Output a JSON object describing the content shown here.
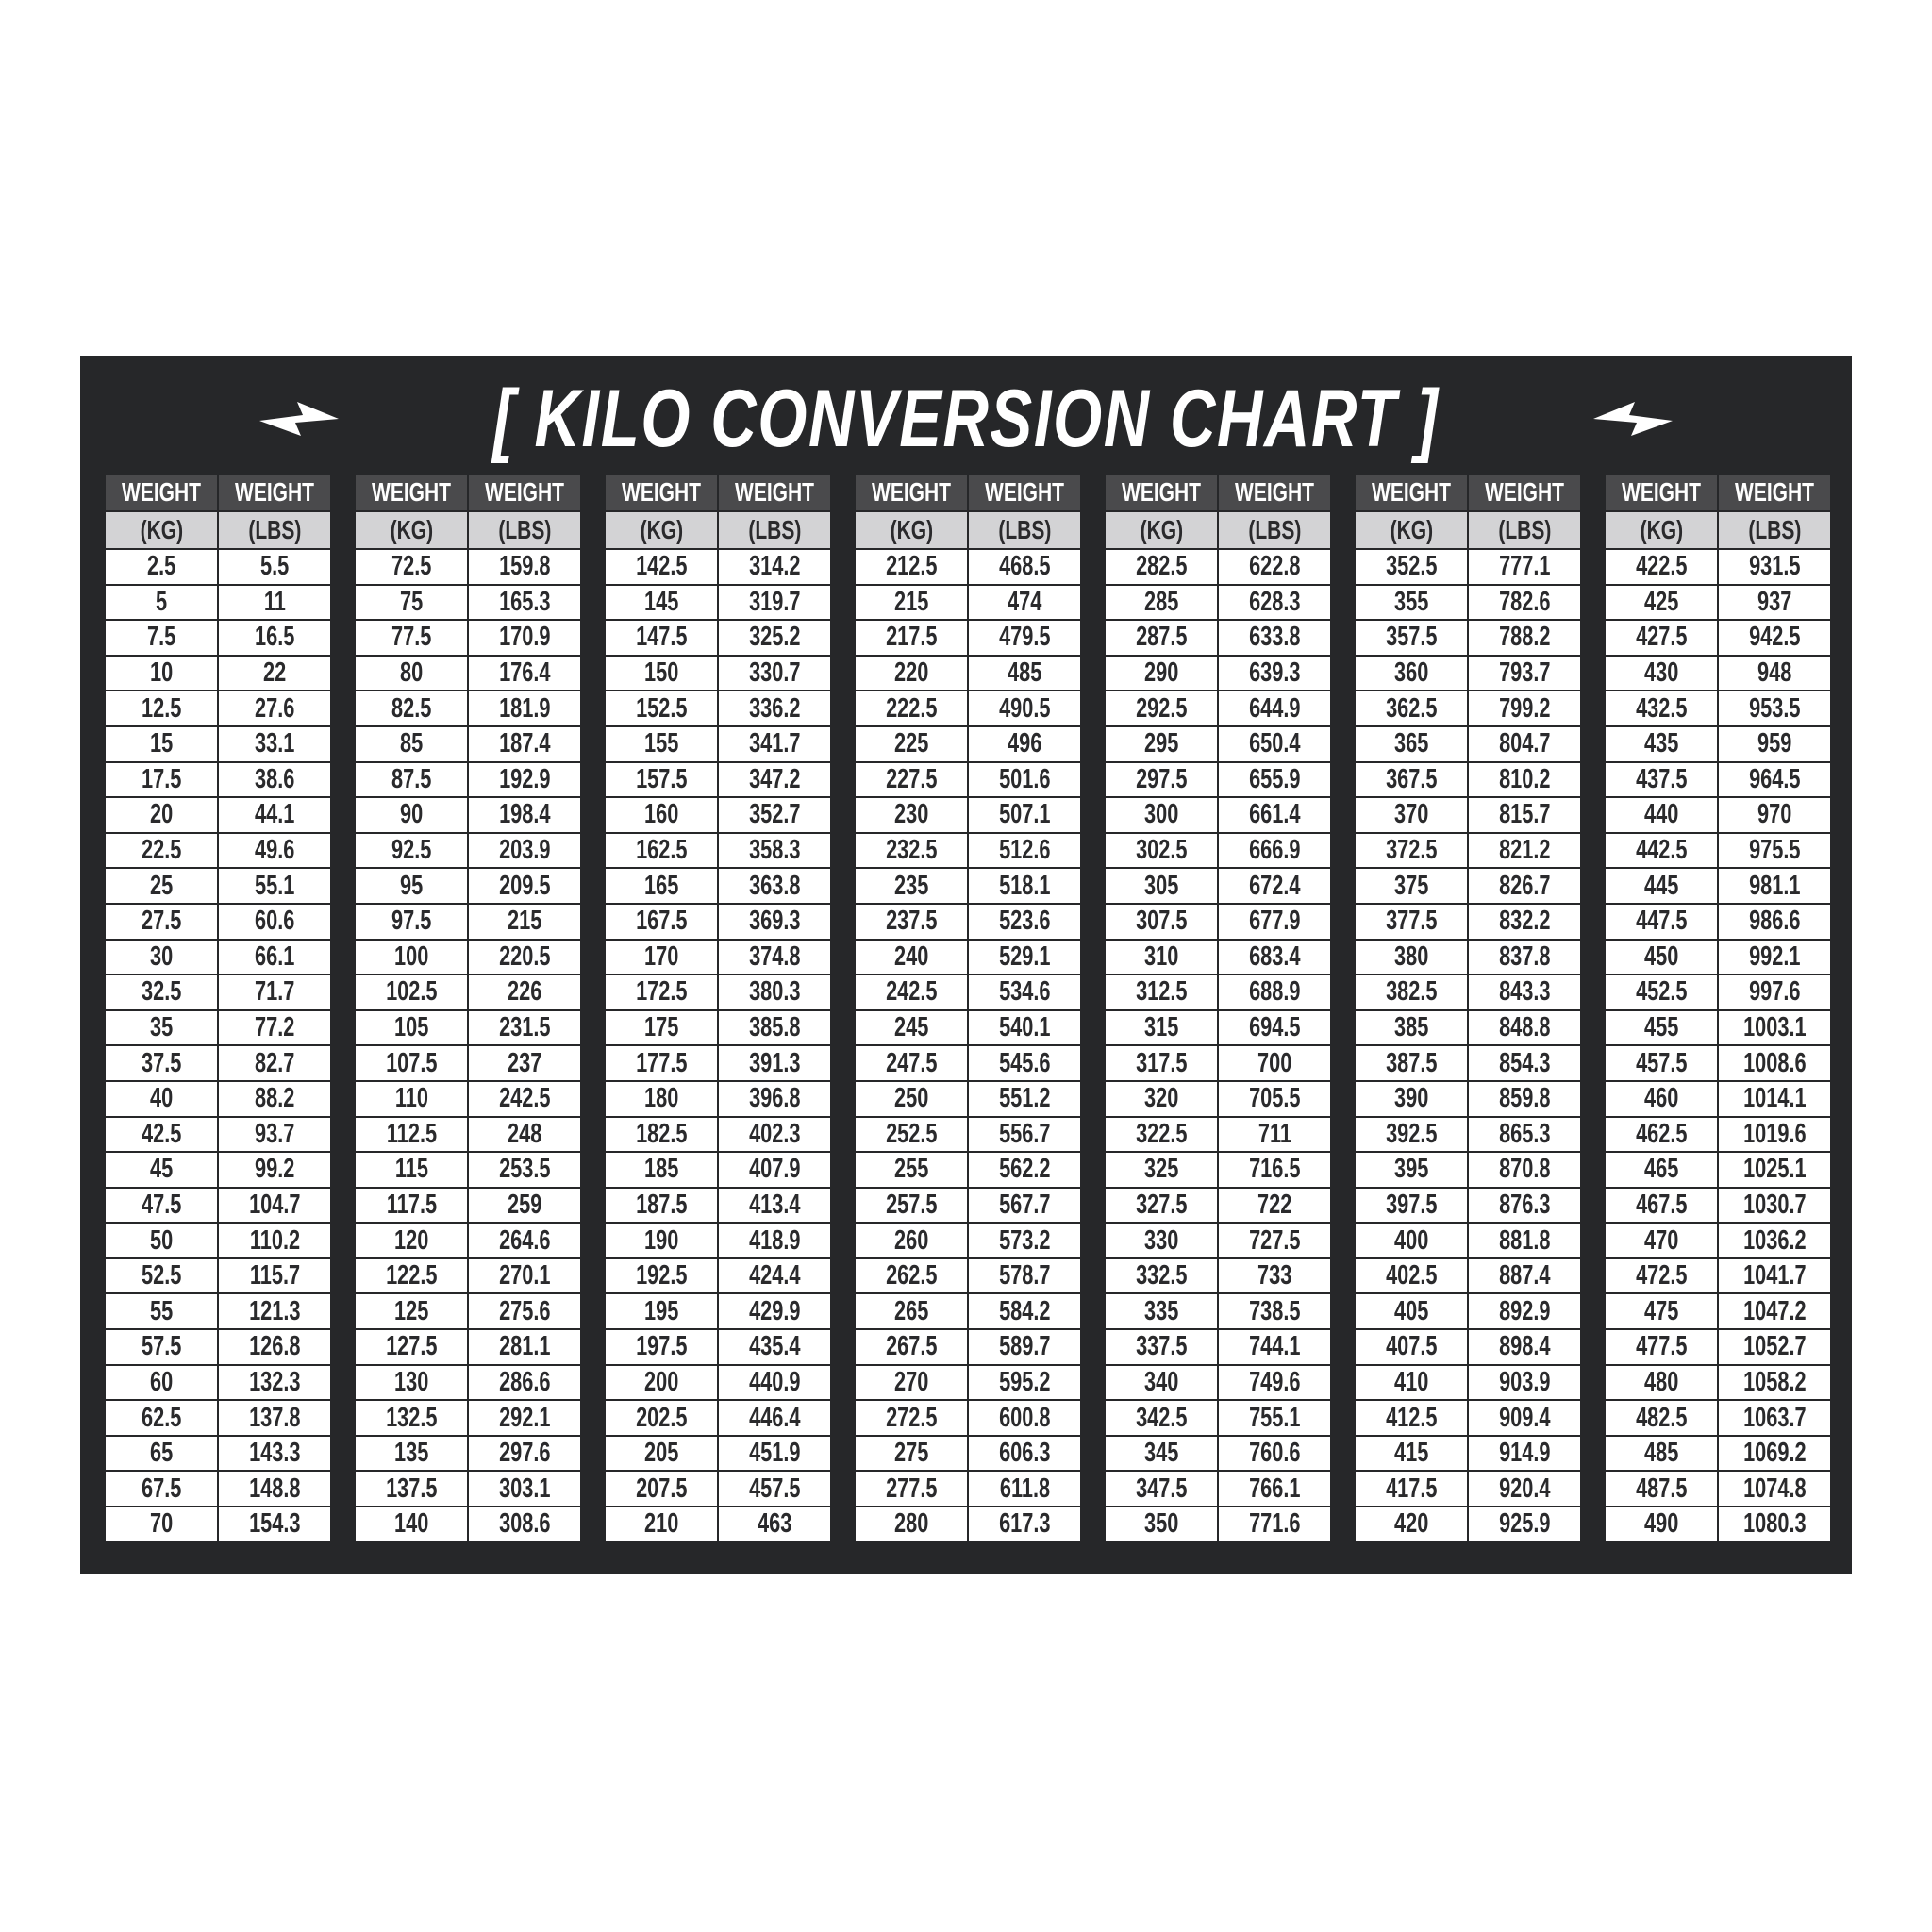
{
  "chart_data": {
    "type": "table",
    "title": "[ KILO CONVERSION CHART ]",
    "header_top": [
      "WEIGHT",
      "WEIGHT"
    ],
    "header_units": [
      "(KG)",
      "(LBS)"
    ],
    "groups": [
      {
        "kg": [
          "2.5",
          "5",
          "7.5",
          "10",
          "12.5",
          "15",
          "17.5",
          "20",
          "22.5",
          "25",
          "27.5",
          "30",
          "32.5",
          "35",
          "37.5",
          "40",
          "42.5",
          "45",
          "47.5",
          "50",
          "52.5",
          "55",
          "57.5",
          "60",
          "62.5",
          "65",
          "67.5",
          "70"
        ],
        "lbs": [
          "5.5",
          "11",
          "16.5",
          "22",
          "27.6",
          "33.1",
          "38.6",
          "44.1",
          "49.6",
          "55.1",
          "60.6",
          "66.1",
          "71.7",
          "77.2",
          "82.7",
          "88.2",
          "93.7",
          "99.2",
          "104.7",
          "110.2",
          "115.7",
          "121.3",
          "126.8",
          "132.3",
          "137.8",
          "143.3",
          "148.8",
          "154.3"
        ]
      },
      {
        "kg": [
          "72.5",
          "75",
          "77.5",
          "80",
          "82.5",
          "85",
          "87.5",
          "90",
          "92.5",
          "95",
          "97.5",
          "100",
          "102.5",
          "105",
          "107.5",
          "110",
          "112.5",
          "115",
          "117.5",
          "120",
          "122.5",
          "125",
          "127.5",
          "130",
          "132.5",
          "135",
          "137.5",
          "140"
        ],
        "lbs": [
          "159.8",
          "165.3",
          "170.9",
          "176.4",
          "181.9",
          "187.4",
          "192.9",
          "198.4",
          "203.9",
          "209.5",
          "215",
          "220.5",
          "226",
          "231.5",
          "237",
          "242.5",
          "248",
          "253.5",
          "259",
          "264.6",
          "270.1",
          "275.6",
          "281.1",
          "286.6",
          "292.1",
          "297.6",
          "303.1",
          "308.6"
        ]
      },
      {
        "kg": [
          "142.5",
          "145",
          "147.5",
          "150",
          "152.5",
          "155",
          "157.5",
          "160",
          "162.5",
          "165",
          "167.5",
          "170",
          "172.5",
          "175",
          "177.5",
          "180",
          "182.5",
          "185",
          "187.5",
          "190",
          "192.5",
          "195",
          "197.5",
          "200",
          "202.5",
          "205",
          "207.5",
          "210"
        ],
        "lbs": [
          "314.2",
          "319.7",
          "325.2",
          "330.7",
          "336.2",
          "341.7",
          "347.2",
          "352.7",
          "358.3",
          "363.8",
          "369.3",
          "374.8",
          "380.3",
          "385.8",
          "391.3",
          "396.8",
          "402.3",
          "407.9",
          "413.4",
          "418.9",
          "424.4",
          "429.9",
          "435.4",
          "440.9",
          "446.4",
          "451.9",
          "457.5",
          "463"
        ]
      },
      {
        "kg": [
          "212.5",
          "215",
          "217.5",
          "220",
          "222.5",
          "225",
          "227.5",
          "230",
          "232.5",
          "235",
          "237.5",
          "240",
          "242.5",
          "245",
          "247.5",
          "250",
          "252.5",
          "255",
          "257.5",
          "260",
          "262.5",
          "265",
          "267.5",
          "270",
          "272.5",
          "275",
          "277.5",
          "280"
        ],
        "lbs": [
          "468.5",
          "474",
          "479.5",
          "485",
          "490.5",
          "496",
          "501.6",
          "507.1",
          "512.6",
          "518.1",
          "523.6",
          "529.1",
          "534.6",
          "540.1",
          "545.6",
          "551.2",
          "556.7",
          "562.2",
          "567.7",
          "573.2",
          "578.7",
          "584.2",
          "589.7",
          "595.2",
          "600.8",
          "606.3",
          "611.8",
          "617.3"
        ]
      },
      {
        "kg": [
          "282.5",
          "285",
          "287.5",
          "290",
          "292.5",
          "295",
          "297.5",
          "300",
          "302.5",
          "305",
          "307.5",
          "310",
          "312.5",
          "315",
          "317.5",
          "320",
          "322.5",
          "325",
          "327.5",
          "330",
          "332.5",
          "335",
          "337.5",
          "340",
          "342.5",
          "345",
          "347.5",
          "350"
        ],
        "lbs": [
          "622.8",
          "628.3",
          "633.8",
          "639.3",
          "644.9",
          "650.4",
          "655.9",
          "661.4",
          "666.9",
          "672.4",
          "677.9",
          "683.4",
          "688.9",
          "694.5",
          "700",
          "705.5",
          "711",
          "716.5",
          "722",
          "727.5",
          "733",
          "738.5",
          "744.1",
          "749.6",
          "755.1",
          "760.6",
          "766.1",
          "771.6"
        ]
      },
      {
        "kg": [
          "352.5",
          "355",
          "357.5",
          "360",
          "362.5",
          "365",
          "367.5",
          "370",
          "372.5",
          "375",
          "377.5",
          "380",
          "382.5",
          "385",
          "387.5",
          "390",
          "392.5",
          "395",
          "397.5",
          "400",
          "402.5",
          "405",
          "407.5",
          "410",
          "412.5",
          "415",
          "417.5",
          "420"
        ],
        "lbs": [
          "777.1",
          "782.6",
          "788.2",
          "793.7",
          "799.2",
          "804.7",
          "810.2",
          "815.7",
          "821.2",
          "826.7",
          "832.2",
          "837.8",
          "843.3",
          "848.8",
          "854.3",
          "859.8",
          "865.3",
          "870.8",
          "876.3",
          "881.8",
          "887.4",
          "892.9",
          "898.4",
          "903.9",
          "909.4",
          "914.9",
          "920.4",
          "925.9"
        ]
      },
      {
        "kg": [
          "422.5",
          "425",
          "427.5",
          "430",
          "432.5",
          "435",
          "437.5",
          "440",
          "442.5",
          "445",
          "447.5",
          "450",
          "452.5",
          "455",
          "457.5",
          "460",
          "462.5",
          "465",
          "467.5",
          "470",
          "472.5",
          "475",
          "477.5",
          "480",
          "482.5",
          "485",
          "487.5",
          "490"
        ],
        "lbs": [
          "931.5",
          "937",
          "942.5",
          "948",
          "953.5",
          "959",
          "964.5",
          "970",
          "975.5",
          "981.1",
          "986.6",
          "992.1",
          "997.6",
          "1003.1",
          "1008.6",
          "1014.1",
          "1019.6",
          "1025.1",
          "1030.7",
          "1036.2",
          "1041.7",
          "1047.2",
          "1052.7",
          "1058.2",
          "1063.7",
          "1069.2",
          "1074.8",
          "1080.3"
        ]
      }
    ]
  },
  "colors": {
    "panel": "#262729",
    "header": "#4a4a4c",
    "subheader": "#d3d3d5",
    "cell": "#ffffff",
    "text": "#2a2a2c"
  },
  "icons": {
    "left": "lightning-arrow-icon",
    "right": "lightning-arrow-icon"
  }
}
